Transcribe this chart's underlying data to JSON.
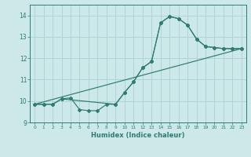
{
  "xlabel": "Humidex (Indice chaleur)",
  "bg_color": "#cce8e8",
  "grid_color": "#b0d4d4",
  "line_color": "#2e7d6e",
  "xlim": [
    -0.5,
    23.5
  ],
  "ylim": [
    9.0,
    14.5
  ],
  "yticks": [
    9,
    10,
    11,
    12,
    13,
    14
  ],
  "xticks": [
    0,
    1,
    2,
    3,
    4,
    5,
    6,
    7,
    8,
    9,
    10,
    11,
    12,
    13,
    14,
    15,
    16,
    17,
    18,
    19,
    20,
    21,
    22,
    23
  ],
  "line1_x": [
    0,
    1,
    2,
    3,
    4,
    5,
    6,
    7,
    8,
    9,
    10,
    11,
    12,
    13,
    14,
    15,
    16,
    17,
    18,
    19,
    20,
    21,
    22,
    23
  ],
  "line1_y": [
    9.85,
    9.85,
    9.85,
    10.1,
    10.15,
    9.6,
    9.55,
    9.55,
    9.85,
    9.85,
    10.4,
    10.9,
    11.55,
    11.85,
    13.65,
    13.95,
    13.85,
    13.55,
    12.9,
    12.55,
    12.5,
    12.45,
    12.45,
    12.45
  ],
  "line2_x": [
    0,
    1,
    2,
    3,
    9,
    10,
    11,
    12,
    13,
    14,
    15,
    16,
    17,
    18,
    19,
    20,
    21,
    22,
    23
  ],
  "line2_y": [
    9.85,
    9.85,
    9.85,
    10.1,
    9.85,
    10.4,
    10.9,
    11.55,
    11.85,
    13.65,
    13.95,
    13.85,
    13.55,
    12.9,
    12.55,
    12.5,
    12.45,
    12.45,
    12.45
  ],
  "line3_x": [
    0,
    23
  ],
  "line3_y": [
    9.85,
    12.45
  ]
}
